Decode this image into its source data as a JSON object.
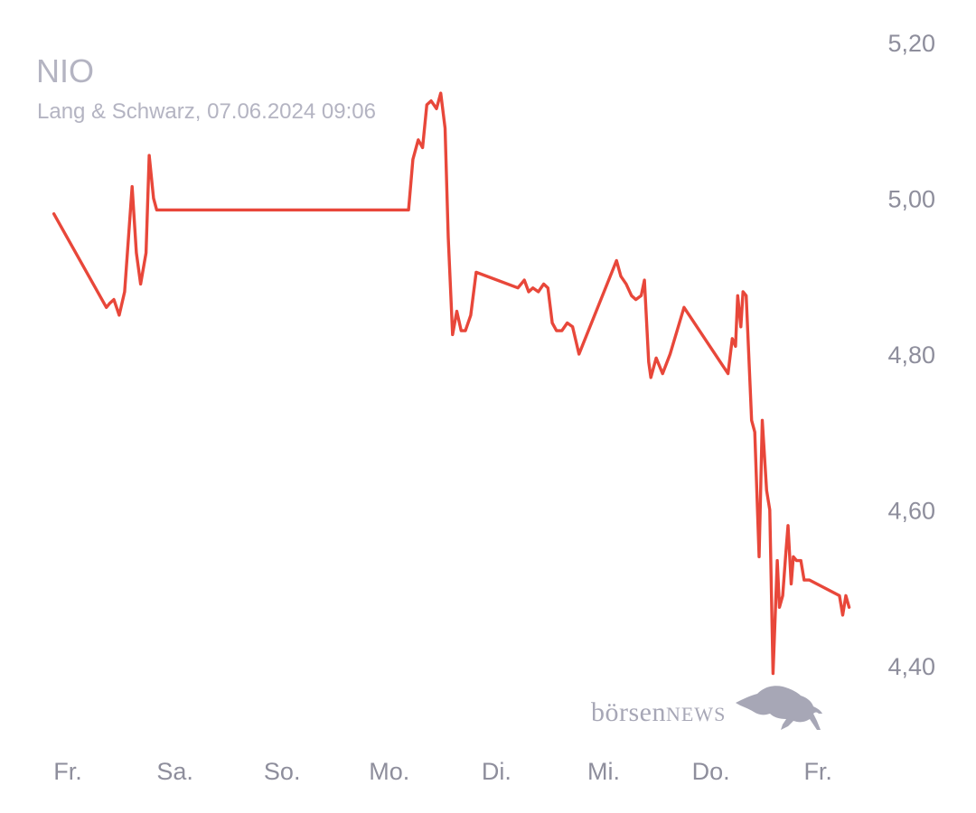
{
  "header": {
    "title": "NIO",
    "subtitle": "Lang & Schwarz, 07.06.2024 09:06"
  },
  "logo": {
    "part1": "börsen",
    "part2": "NEWS"
  },
  "colors": {
    "line": "#e8473a",
    "text": "#8e8e9c",
    "title": "#b4b4c2",
    "logo": "#a7a7b6"
  },
  "chart_data": {
    "type": "line",
    "title": "NIO",
    "subtitle": "Lang & Schwarz, 07.06.2024 09:06",
    "xlabel": "",
    "ylabel": "",
    "ylim": [
      4.38,
      5.22
    ],
    "xlim": [
      0,
      7.4
    ],
    "grid": false,
    "y_axis_position": "right",
    "yticks": [
      {
        "value": 5.2,
        "label": "5,20"
      },
      {
        "value": 5.0,
        "label": "5,00"
      },
      {
        "value": 4.8,
        "label": "4,80"
      },
      {
        "value": 4.6,
        "label": "4,60"
      },
      {
        "value": 4.4,
        "label": "4,40"
      }
    ],
    "xticks": [
      {
        "value": 0,
        "label": "Fr."
      },
      {
        "value": 1,
        "label": "Sa."
      },
      {
        "value": 2,
        "label": "So."
      },
      {
        "value": 3,
        "label": "Mo."
      },
      {
        "value": 4,
        "label": "Di."
      },
      {
        "value": 5,
        "label": "Mi."
      },
      {
        "value": 6,
        "label": "Do."
      },
      {
        "value": 7,
        "label": "Fr."
      }
    ],
    "series": [
      {
        "name": "",
        "points": [
          [
            -0.13,
            4.98
          ],
          [
            0.36,
            4.86
          ],
          [
            0.39,
            4.865
          ],
          [
            0.43,
            4.87
          ],
          [
            0.48,
            4.85
          ],
          [
            0.53,
            4.88
          ],
          [
            0.6,
            5.015
          ],
          [
            0.64,
            4.93
          ],
          [
            0.68,
            4.89
          ],
          [
            0.73,
            4.93
          ],
          [
            0.76,
            5.055
          ],
          [
            0.8,
            5.0
          ],
          [
            0.83,
            4.985
          ],
          [
            1.0,
            4.985
          ],
          [
            2.0,
            4.985
          ],
          [
            3.18,
            4.985
          ],
          [
            3.22,
            5.05
          ],
          [
            3.27,
            5.075
          ],
          [
            3.31,
            5.065
          ],
          [
            3.35,
            5.12
          ],
          [
            3.39,
            5.125
          ],
          [
            3.44,
            5.115
          ],
          [
            3.48,
            5.135
          ],
          [
            3.52,
            5.09
          ],
          [
            3.55,
            4.95
          ],
          [
            3.59,
            4.825
          ],
          [
            3.63,
            4.855
          ],
          [
            3.67,
            4.83
          ],
          [
            3.71,
            4.83
          ],
          [
            3.76,
            4.85
          ],
          [
            3.81,
            4.905
          ],
          [
            4.2,
            4.885
          ],
          [
            4.26,
            4.895
          ],
          [
            4.3,
            4.88
          ],
          [
            4.34,
            4.885
          ],
          [
            4.39,
            4.88
          ],
          [
            4.44,
            4.89
          ],
          [
            4.48,
            4.885
          ],
          [
            4.52,
            4.84
          ],
          [
            4.56,
            4.83
          ],
          [
            4.61,
            4.83
          ],
          [
            4.66,
            4.84
          ],
          [
            4.71,
            4.835
          ],
          [
            4.77,
            4.8
          ],
          [
            5.12,
            4.92
          ],
          [
            5.16,
            4.9
          ],
          [
            5.21,
            4.89
          ],
          [
            5.26,
            4.875
          ],
          [
            5.3,
            4.87
          ],
          [
            5.35,
            4.875
          ],
          [
            5.38,
            4.895
          ],
          [
            5.42,
            4.79
          ],
          [
            5.44,
            4.77
          ],
          [
            5.49,
            4.795
          ],
          [
            5.55,
            4.775
          ],
          [
            5.62,
            4.8
          ],
          [
            5.75,
            4.86
          ],
          [
            6.16,
            4.775
          ],
          [
            6.2,
            4.82
          ],
          [
            6.23,
            4.81
          ],
          [
            6.25,
            4.875
          ],
          [
            6.28,
            4.835
          ],
          [
            6.3,
            4.88
          ],
          [
            6.33,
            4.875
          ],
          [
            6.38,
            4.715
          ],
          [
            6.41,
            4.7
          ],
          [
            6.45,
            4.54
          ],
          [
            6.48,
            4.715
          ],
          [
            6.52,
            4.625
          ],
          [
            6.55,
            4.6
          ],
          [
            6.58,
            4.39
          ],
          [
            6.62,
            4.535
          ],
          [
            6.64,
            4.475
          ],
          [
            6.67,
            4.49
          ],
          [
            6.7,
            4.545
          ],
          [
            6.72,
            4.58
          ],
          [
            6.75,
            4.505
          ],
          [
            6.77,
            4.54
          ],
          [
            6.8,
            4.535
          ],
          [
            6.84,
            4.535
          ],
          [
            6.87,
            4.51
          ],
          [
            6.92,
            4.51
          ],
          [
            7.2,
            4.49
          ],
          [
            7.23,
            4.465
          ],
          [
            7.26,
            4.49
          ],
          [
            7.29,
            4.475
          ]
        ]
      }
    ]
  }
}
